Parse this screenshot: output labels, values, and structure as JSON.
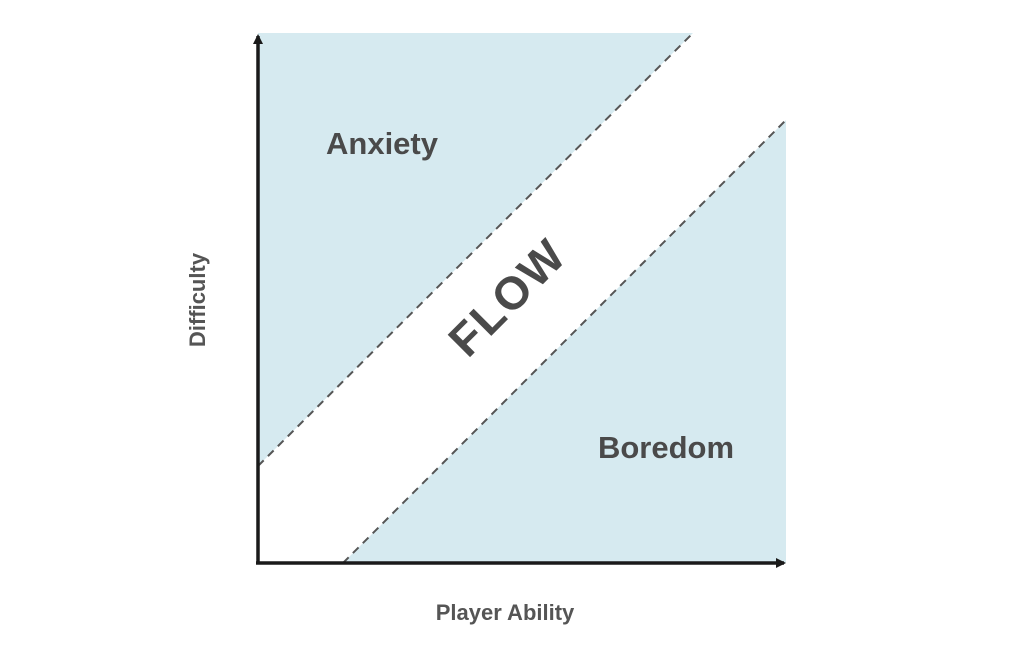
{
  "diagram": {
    "title": "",
    "x_axis_label": "Player Ability",
    "y_axis_label": "Difficulty",
    "regions": {
      "upper": "Anxiety",
      "channel": "FLOW",
      "lower": "Boredom"
    },
    "colors": {
      "zone_fill": "#d6eaf0",
      "axis": "#1a1a1a",
      "boundary": "#555555",
      "text": "#4a4a4a"
    }
  }
}
